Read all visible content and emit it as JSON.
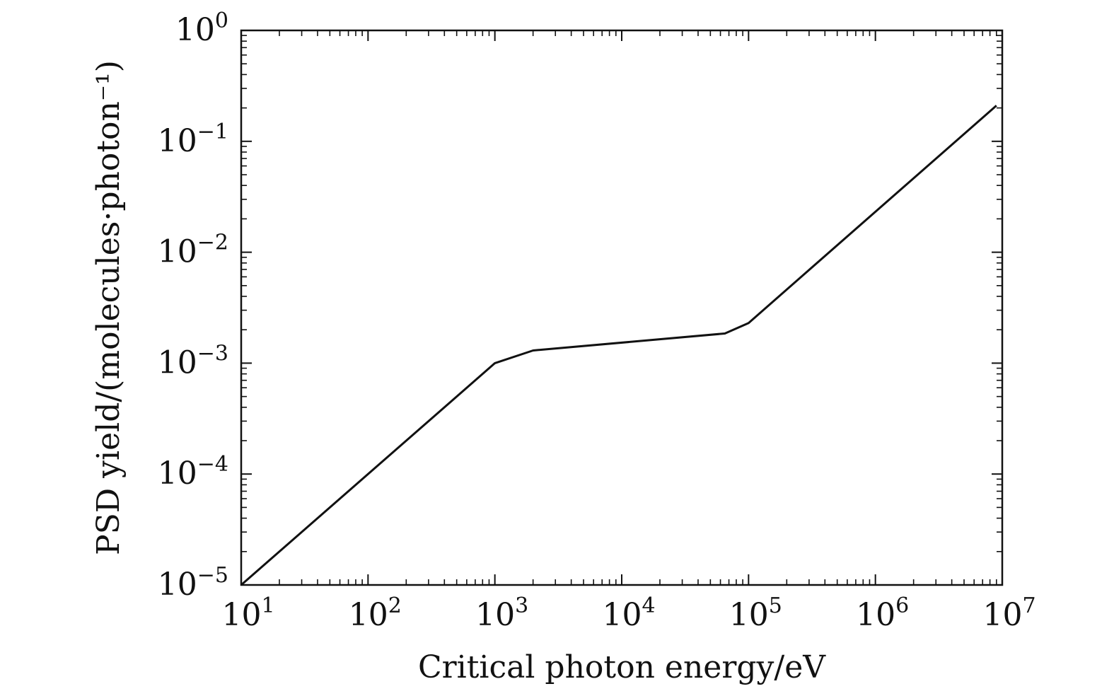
{
  "chart_data": {
    "type": "line",
    "xlabel": "Critical photon energy/eV",
    "ylabel": "PSD yield/(molecules·photon⁻¹)",
    "xscale": "log",
    "yscale": "log",
    "xlim": [
      10,
      10000000
    ],
    "ylim": [
      1e-05,
      1
    ],
    "grid": false,
    "x_ticks": [
      {
        "value": 10,
        "base": "10",
        "exp": "1"
      },
      {
        "value": 100,
        "base": "10",
        "exp": "2"
      },
      {
        "value": 1000,
        "base": "10",
        "exp": "3"
      },
      {
        "value": 10000,
        "base": "10",
        "exp": "4"
      },
      {
        "value": 100000,
        "base": "10",
        "exp": "5"
      },
      {
        "value": 1000000,
        "base": "10",
        "exp": "6"
      },
      {
        "value": 10000000,
        "base": "10",
        "exp": "7"
      }
    ],
    "y_ticks": [
      {
        "value": 1,
        "base": "10",
        "exp": "0"
      },
      {
        "value": 0.1,
        "base": "10",
        "exp": "−1"
      },
      {
        "value": 0.01,
        "base": "10",
        "exp": "−2"
      },
      {
        "value": 0.001,
        "base": "10",
        "exp": "−3"
      },
      {
        "value": 0.0001,
        "base": "10",
        "exp": "−4"
      },
      {
        "value": 1e-05,
        "base": "10",
        "exp": "−5"
      }
    ],
    "series": [
      {
        "x": [
          10,
          1000,
          2000,
          65000,
          100000,
          9000000
        ],
        "y": [
          1e-05,
          0.001,
          0.0013,
          0.00185,
          0.0023,
          0.21
        ]
      }
    ]
  }
}
